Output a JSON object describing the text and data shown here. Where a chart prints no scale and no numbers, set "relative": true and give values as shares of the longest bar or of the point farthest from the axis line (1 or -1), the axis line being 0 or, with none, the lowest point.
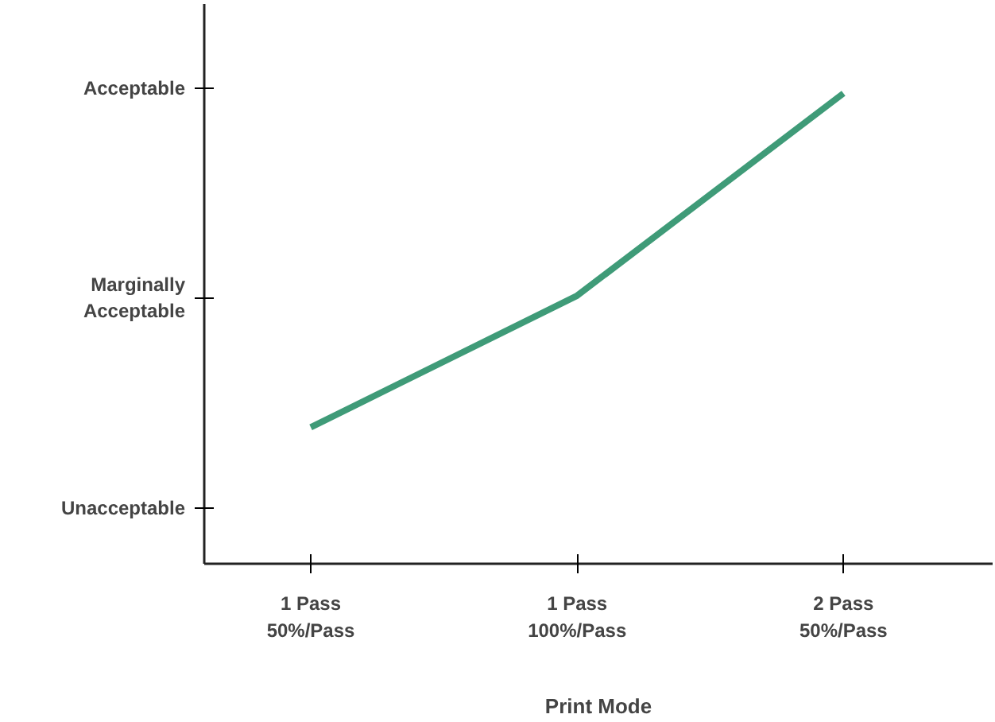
{
  "chart_data": {
    "type": "line",
    "xlabel": "Print Mode",
    "relative": true,
    "categories": [
      "1 Pass\n50%/Pass",
      "1 Pass\n100%/Pass",
      "2 Pass\n50%/Pass"
    ],
    "series": [
      {
        "color": "#3f9b78",
        "values": [
          0.29,
          0.57,
          1.0
        ]
      }
    ],
    "annotations": [
      "Unacceptable",
      "Marginally\nAcceptable",
      "Acceptable"
    ],
    "grid": false,
    "marker": "none",
    "line_style": "solid"
  }
}
